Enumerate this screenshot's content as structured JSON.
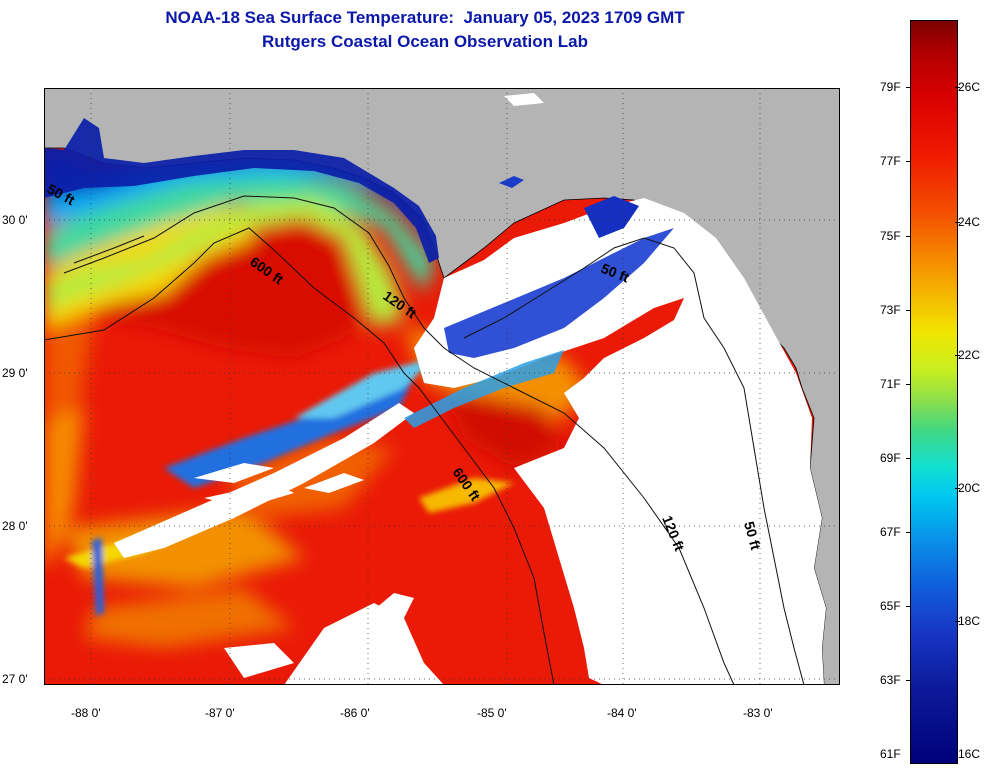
{
  "title": {
    "line1": "NOAA-18 Sea Surface Temperature:  January 05, 2023 1709 GMT",
    "line2": "Rutgers Coastal Ocean Observation Lab"
  },
  "map": {
    "lat_labels": [
      "30 0'",
      "29 0'",
      "28 0'",
      "27 0'"
    ],
    "lon_labels": [
      "-88 0'",
      "-87 0'",
      "-86 0'",
      "-85 0'",
      "-84 0'",
      "-83 0'"
    ],
    "contours": {
      "c50_west": "50 ft",
      "c600_north": "600 ft",
      "c120_north": "120 ft",
      "c50_east": "50 ft",
      "c600_south": "600 ft",
      "c120_south": "120 ft",
      "c50_south": "50 ft"
    },
    "colors": {
      "land": "#b4b4b4",
      "cloud": "#ffffff",
      "border": "#000000"
    }
  },
  "colorbar": {
    "fahrenheit": [
      "79F",
      "77F",
      "75F",
      "73F",
      "71F",
      "69F",
      "67F",
      "65F",
      "63F",
      "61F"
    ],
    "celsius": [
      "26C",
      "24C",
      "22C",
      "20C",
      "18C",
      "16C"
    ],
    "min_c": 16,
    "max_c": 27
  }
}
